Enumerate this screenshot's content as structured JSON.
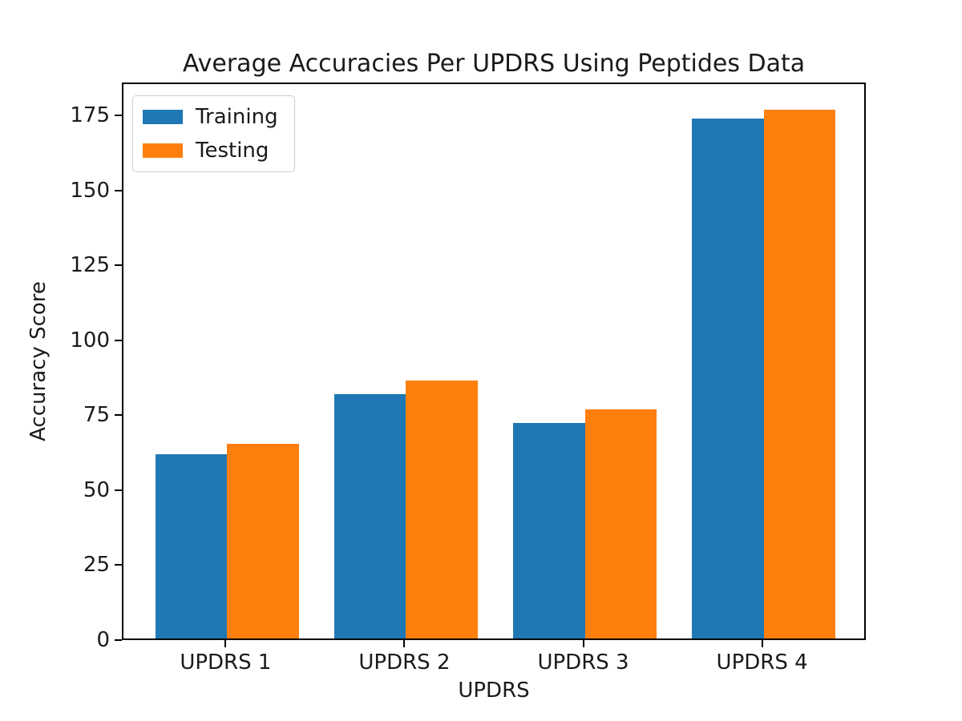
{
  "figure": {
    "background": "#ffffff",
    "frame_color": "#000000",
    "text_color": "#1a1a1a"
  },
  "chart_data": {
    "type": "bar",
    "title": "Average Accuracies Per UPDRS Using Peptides Data",
    "xlabel": "UPDRS",
    "ylabel": "Accuracy Score",
    "categories": [
      "UPDRS 1",
      "UPDRS 2",
      "UPDRS 3",
      "UPDRS 4"
    ],
    "series": [
      {
        "name": "Training",
        "color": "#1f77b4",
        "values": [
          61.5,
          81.5,
          72,
          173.5
        ]
      },
      {
        "name": "Testing",
        "color": "#ff7f0e",
        "values": [
          65,
          86,
          76.5,
          176.5
        ]
      }
    ],
    "ylim": [
      0,
      186
    ],
    "yticks": [
      0,
      25,
      50,
      75,
      100,
      125,
      150,
      175
    ],
    "grid": false,
    "legend": {
      "location": "upper left",
      "labels": [
        "Training",
        "Testing"
      ]
    }
  }
}
